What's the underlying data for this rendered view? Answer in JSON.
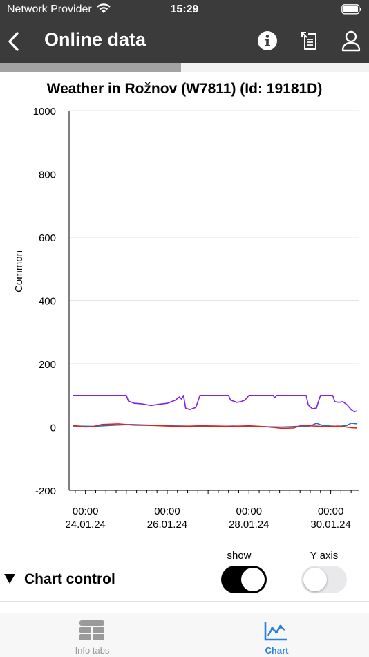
{
  "status_bar": {
    "carrier": "Network Provider",
    "time": "15:29"
  },
  "nav": {
    "title": "Online data",
    "back_icon": "chevron-left-icon",
    "actions": [
      "info-icon",
      "export-icon",
      "user-icon"
    ]
  },
  "progress": {
    "fraction": 0.49
  },
  "chart_title": "Weather in Rožnov (W7811) (Id: 19181D)",
  "chart_data": {
    "type": "line",
    "title": "Weather in Rožnov (W7811) (Id: 19181D)",
    "ylabel": "Common",
    "xlabel": "",
    "ylim": [
      -200,
      1000
    ],
    "xlim_days": [
      -0.4,
      6.7
    ],
    "yticks": [
      "-200",
      "0",
      "200",
      "400",
      "600",
      "800",
      "1000"
    ],
    "xticks": [
      {
        "day": 0,
        "time": "00:00",
        "date": "24.01.24"
      },
      {
        "day": 2,
        "time": "00:00",
        "date": "26.01.24"
      },
      {
        "day": 4,
        "time": "00:00",
        "date": "28.01.24"
      },
      {
        "day": 6,
        "time": "00:00",
        "date": "30.01.24"
      }
    ],
    "grid": true,
    "series": [
      {
        "color": "#7f1ff0",
        "points": [
          [
            -0.3,
            100
          ],
          [
            0.9,
            100
          ],
          [
            1.0,
            100
          ],
          [
            1.05,
            82
          ],
          [
            1.2,
            75
          ],
          [
            1.4,
            73
          ],
          [
            1.6,
            68
          ],
          [
            1.8,
            72
          ],
          [
            2.0,
            75
          ],
          [
            2.2,
            85
          ],
          [
            2.3,
            95
          ],
          [
            2.35,
            88
          ],
          [
            2.4,
            100
          ],
          [
            2.45,
            60
          ],
          [
            2.55,
            55
          ],
          [
            2.7,
            62
          ],
          [
            2.75,
            80
          ],
          [
            2.8,
            100
          ],
          [
            3.3,
            100
          ],
          [
            3.5,
            100
          ],
          [
            3.55,
            85
          ],
          [
            3.7,
            78
          ],
          [
            3.8,
            80
          ],
          [
            3.9,
            85
          ],
          [
            4.0,
            100
          ],
          [
            4.2,
            100
          ],
          [
            4.6,
            100
          ],
          [
            4.62,
            92
          ],
          [
            4.68,
            100
          ],
          [
            5.4,
            100
          ],
          [
            5.45,
            70
          ],
          [
            5.55,
            58
          ],
          [
            5.65,
            60
          ],
          [
            5.7,
            80
          ],
          [
            5.75,
            100
          ],
          [
            6.05,
            100
          ],
          [
            6.1,
            80
          ],
          [
            6.2,
            78
          ],
          [
            6.3,
            80
          ],
          [
            6.4,
            70
          ],
          [
            6.5,
            55
          ],
          [
            6.58,
            48
          ],
          [
            6.65,
            52
          ]
        ]
      },
      {
        "color": "#1f6fd0",
        "points": [
          [
            -0.3,
            3
          ],
          [
            0.2,
            2
          ],
          [
            0.6,
            5
          ],
          [
            1.1,
            8
          ],
          [
            1.6,
            6
          ],
          [
            2.0,
            4
          ],
          [
            2.4,
            3
          ],
          [
            2.8,
            2
          ],
          [
            3.2,
            1
          ],
          [
            3.6,
            3
          ],
          [
            4.0,
            2
          ],
          [
            4.4,
            1
          ],
          [
            4.8,
            0
          ],
          [
            5.2,
            2
          ],
          [
            5.5,
            3
          ],
          [
            5.65,
            12
          ],
          [
            5.8,
            5
          ],
          [
            6.0,
            3
          ],
          [
            6.2,
            2
          ],
          [
            6.4,
            5
          ],
          [
            6.5,
            12
          ],
          [
            6.65,
            10
          ]
        ]
      },
      {
        "color": "#e0241c",
        "points": [
          [
            -0.3,
            5
          ],
          [
            0.0,
            0
          ],
          [
            0.2,
            2
          ],
          [
            0.4,
            8
          ],
          [
            0.8,
            10
          ],
          [
            1.2,
            6
          ],
          [
            1.6,
            5
          ],
          [
            2.0,
            3
          ],
          [
            2.4,
            2
          ],
          [
            2.8,
            4
          ],
          [
            3.2,
            3
          ],
          [
            3.6,
            2
          ],
          [
            4.0,
            4
          ],
          [
            4.4,
            1
          ],
          [
            4.8,
            -4
          ],
          [
            5.1,
            -3
          ],
          [
            5.3,
            6
          ],
          [
            5.6,
            3
          ],
          [
            5.9,
            1
          ],
          [
            6.2,
            3
          ],
          [
            6.5,
            -2
          ],
          [
            6.65,
            -3
          ]
        ]
      }
    ]
  },
  "chart_control": {
    "title": "Chart control",
    "show_label": "show",
    "yaxis_label": "Y axis",
    "show_on": true,
    "yaxis_on": false
  },
  "tabs": [
    {
      "label": "Info tabs",
      "icon": "table-icon",
      "active": false
    },
    {
      "label": "Chart",
      "icon": "chart-icon",
      "active": true
    }
  ],
  "colors": {
    "bar": "#3b3b3b",
    "accent": "#2a7de1"
  }
}
